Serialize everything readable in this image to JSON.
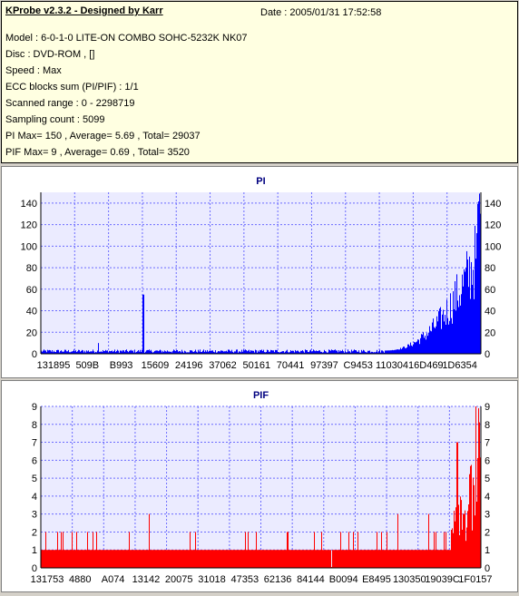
{
  "info": {
    "title": "KProbe v2.3.2 - Designed by Karr",
    "date": "Date : 2005/01/31 17:52:58",
    "lines": [
      "Model : 6-0-1-0 LITE-ON COMBO SOHC-5232K NK07",
      "Disc : DVD-ROM ,  []",
      "Speed : Max",
      "ECC blocks sum (PI/PIF) : 1/1",
      "Scanned range : 0 - 2298719",
      "Sampling count : 5099",
      "PI Max= 150 , Average= 5.69 , Total= 29037",
      "PIF Max= 9 , Average= 0.69 , Total= 3520"
    ]
  },
  "colors": {
    "background": "#d4d0c8",
    "info_bg": "#ffffe1",
    "plot_bg": "#ebebff",
    "grid": "#6b6bff",
    "pi_bar": "#0000ff",
    "pif_bar": "#ff0000",
    "title": "#000080"
  },
  "chart_data": [
    {
      "type": "bar",
      "title": "PI",
      "ylim": [
        0,
        150
      ],
      "yticks": [
        0,
        20,
        40,
        60,
        80,
        100,
        120,
        140
      ],
      "xtick_labels": [
        "131895",
        "509B",
        "B993",
        "15609",
        "24196",
        "37062",
        "50161",
        "70441",
        "97397",
        "C9453",
        "110304",
        "16D469",
        "1D6354"
      ],
      "grid": true,
      "sample_count": 5099,
      "max": 150,
      "average": 5.69,
      "spikes": [
        {
          "position": 0.232,
          "value": 55
        },
        {
          "position": 0.13,
          "value": 10
        }
      ]
    },
    {
      "type": "bar",
      "title": "PIF",
      "ylim": [
        0,
        9
      ],
      "yticks": [
        0,
        1,
        2,
        3,
        4,
        5,
        6,
        7,
        8,
        9
      ],
      "xtick_labels": [
        "131753",
        "4880",
        "A074",
        "13142",
        "20075",
        "31018",
        "47353",
        "62136",
        "84144",
        "B0094",
        "E8495",
        "130350",
        "19039C",
        "1F0157"
      ],
      "grid": true,
      "sample_count": 5099,
      "max": 9,
      "average": 0.69
    }
  ]
}
